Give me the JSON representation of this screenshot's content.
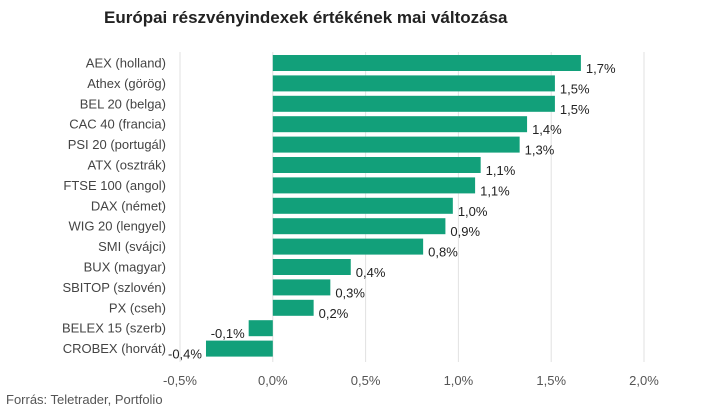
{
  "chart_data": {
    "type": "bar",
    "orientation": "horizontal",
    "title": "Európai részvényindexek értékének mai változása",
    "source": "Forrás: Teletrader, Portfolio",
    "categories": [
      "AEX (holland)",
      "Athex (görög)",
      "BEL 20 (belga)",
      "CAC 40 (francia)",
      "PSI 20 (portugál)",
      "ATX (osztrák)",
      "FTSE 100 (angol)",
      "DAX (német)",
      "WIG 20 (lengyel)",
      "SMI (svájci)",
      "BUX (magyar)",
      "SBITOP (szlovén)",
      "PX (cseh)",
      "BELEX 15 (szerb)",
      "CROBEX (horvát)"
    ],
    "values": [
      1.66,
      1.52,
      1.52,
      1.37,
      1.33,
      1.12,
      1.09,
      0.97,
      0.93,
      0.81,
      0.42,
      0.31,
      0.22,
      -0.13,
      -0.36
    ],
    "value_labels": [
      "1,7%",
      "1,5%",
      "1,5%",
      "1,4%",
      "1,3%",
      "1,1%",
      "1,1%",
      "1,0%",
      "0,9%",
      "0,8%",
      "0,4%",
      "0,3%",
      "0,2%",
      "-0,1%",
      "-0,4%"
    ],
    "xticks": [
      -0.5,
      0,
      0.5,
      1.0,
      1.5,
      2.0
    ],
    "xtick_labels": [
      "-0,5%",
      "0,0%",
      "0,5%",
      "1,0%",
      "1,5%",
      "2,0%"
    ],
    "xlim": [
      -0.5,
      2.0
    ],
    "grid": "vertical",
    "legend": "none",
    "bar_color": "#12a07a"
  }
}
